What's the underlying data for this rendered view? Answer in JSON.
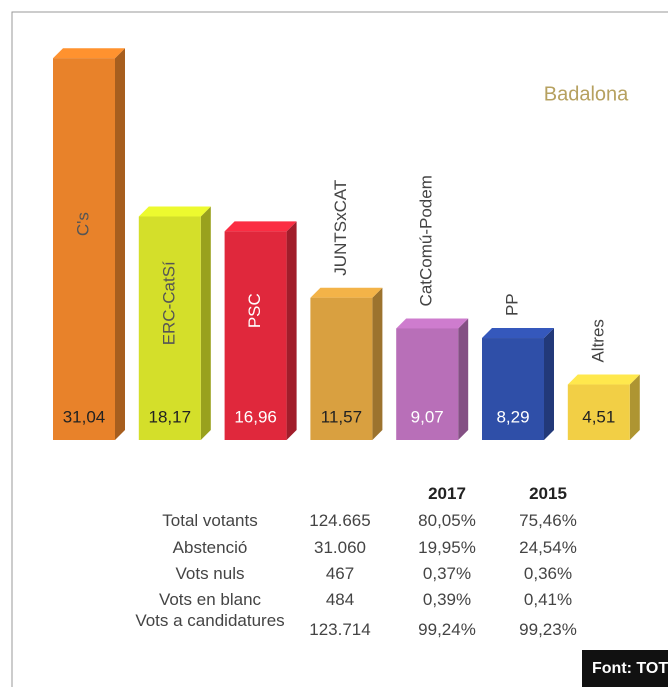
{
  "chart_data": {
    "type": "bar",
    "title": "Badalona",
    "categories": [
      "C's",
      "ERC-CatSí",
      "PSC",
      "JUNTSxCAT",
      "CatComú-Podem",
      "PP",
      "Altres"
    ],
    "values": [
      31.04,
      18.17,
      16.96,
      11.57,
      9.07,
      8.29,
      4.51
    ],
    "value_labels": [
      "31,04",
      "18,17",
      "16,96",
      "11,57",
      "9,07",
      "8,29",
      "4,51"
    ],
    "colors": [
      "#e8822a",
      "#d4df2a",
      "#e0283c",
      "#d9a040",
      "#b86fb8",
      "#2f4fa8",
      "#f2cf45"
    ]
  },
  "table": {
    "header": [
      "2017",
      "2015"
    ],
    "rows": [
      [
        "Total votants",
        "124.665",
        "80,05%",
        "75,46%"
      ],
      [
        "Abstenció",
        "31.060",
        "19,95%",
        "24,54%"
      ],
      [
        "Vots nuls",
        "467",
        "0,37%",
        "0,36%"
      ],
      [
        "Vots en blanc",
        "484",
        "0,39%",
        "0,41%"
      ],
      [
        "Vots a candidatures",
        "123.714",
        "99,24%",
        "99,23%"
      ]
    ]
  },
  "source": "Font: TOT"
}
